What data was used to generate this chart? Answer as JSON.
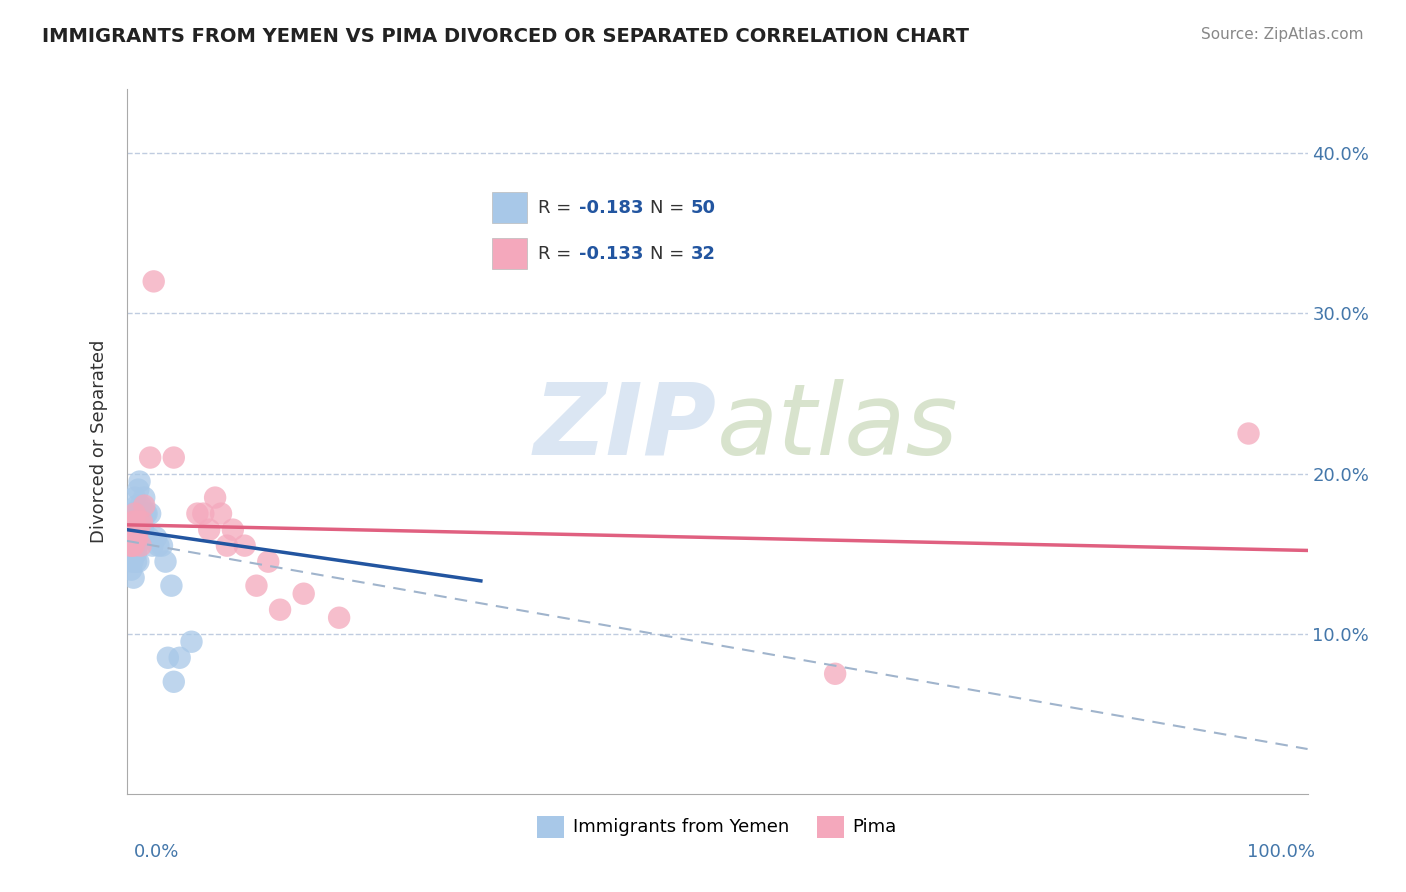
{
  "title": "IMMIGRANTS FROM YEMEN VS PIMA DIVORCED OR SEPARATED CORRELATION CHART",
  "source": "Source: ZipAtlas.com",
  "ylabel": "Divorced or Separated",
  "blue_color": "#a8c8e8",
  "pink_color": "#f4a8bc",
  "line_blue": "#2255a0",
  "line_pink": "#e06080",
  "line_dashed_color": "#a0b4cc",
  "xlim": [
    0.0,
    1.0
  ],
  "ylim": [
    0.0,
    0.44
  ],
  "yticks": [
    0.1,
    0.2,
    0.3,
    0.4
  ],
  "ytick_labels": [
    "10.0%",
    "20.0%",
    "30.0%",
    "40.0%"
  ],
  "blue_scatter_x": [
    0.002,
    0.003,
    0.003,
    0.003,
    0.004,
    0.004,
    0.004,
    0.004,
    0.005,
    0.005,
    0.005,
    0.005,
    0.006,
    0.006,
    0.006,
    0.006,
    0.007,
    0.007,
    0.007,
    0.007,
    0.008,
    0.008,
    0.008,
    0.008,
    0.009,
    0.009,
    0.009,
    0.01,
    0.01,
    0.01,
    0.011,
    0.011,
    0.012,
    0.013,
    0.014,
    0.015,
    0.016,
    0.017,
    0.019,
    0.02,
    0.022,
    0.025,
    0.027,
    0.03,
    0.033,
    0.035,
    0.038,
    0.04,
    0.045,
    0.055
  ],
  "blue_scatter_y": [
    0.155,
    0.148,
    0.162,
    0.172,
    0.15,
    0.16,
    0.172,
    0.14,
    0.145,
    0.155,
    0.165,
    0.175,
    0.15,
    0.16,
    0.17,
    0.135,
    0.155,
    0.165,
    0.175,
    0.185,
    0.15,
    0.16,
    0.17,
    0.145,
    0.155,
    0.165,
    0.18,
    0.17,
    0.19,
    0.145,
    0.175,
    0.195,
    0.18,
    0.175,
    0.165,
    0.185,
    0.175,
    0.175,
    0.16,
    0.175,
    0.155,
    0.16,
    0.155,
    0.155,
    0.145,
    0.085,
    0.13,
    0.07,
    0.085,
    0.095
  ],
  "pink_scatter_x": [
    0.003,
    0.004,
    0.005,
    0.006,
    0.006,
    0.007,
    0.007,
    0.008,
    0.009,
    0.01,
    0.011,
    0.012,
    0.013,
    0.015,
    0.02,
    0.023,
    0.04,
    0.06,
    0.065,
    0.07,
    0.075,
    0.08,
    0.085,
    0.09,
    0.1,
    0.11,
    0.12,
    0.13,
    0.15,
    0.18,
    0.6,
    0.95
  ],
  "pink_scatter_y": [
    0.155,
    0.165,
    0.155,
    0.17,
    0.155,
    0.17,
    0.175,
    0.16,
    0.16,
    0.165,
    0.17,
    0.155,
    0.17,
    0.18,
    0.21,
    0.32,
    0.21,
    0.175,
    0.175,
    0.165,
    0.185,
    0.175,
    0.155,
    0.165,
    0.155,
    0.13,
    0.145,
    0.115,
    0.125,
    0.11,
    0.075,
    0.225
  ],
  "blue_line_x": [
    0.0,
    0.3
  ],
  "blue_line_y": [
    0.165,
    0.133
  ],
  "pink_line_x": [
    0.0,
    1.0
  ],
  "pink_line_y": [
    0.168,
    0.152
  ],
  "dashed_line_x": [
    0.0,
    1.0
  ],
  "dashed_line_y": [
    0.158,
    0.028
  ],
  "legend_r1": "-0.183",
  "legend_n1": "50",
  "legend_r2": "-0.133",
  "legend_n2": "32"
}
